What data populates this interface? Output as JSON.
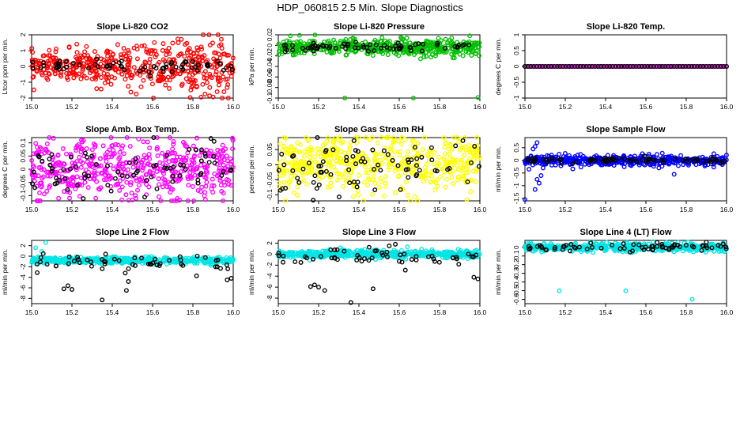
{
  "figure": {
    "title": "HDP_060815 2.5 Min. Slope Diagnostics"
  },
  "chart_data": [
    {
      "type": "scatter",
      "title": "Slope Li-820 CO2",
      "ylabel": "Ltcor ppm per min.",
      "xlim": [
        15.0,
        16.0
      ],
      "ylim": [
        -2,
        2
      ],
      "xticks": [
        "15.0",
        "15.2",
        "15.4",
        "15.6",
        "15.8",
        "16.0"
      ],
      "yticks": [
        -2,
        -1,
        0,
        1,
        2
      ],
      "series": [
        {
          "color": "#ff0000",
          "n": 480,
          "base": 0,
          "spread": 0.42,
          "grow": 1.2,
          "outliers": [
            [
              15.88,
              2.05
            ],
            [
              15.86,
              -1.75
            ],
            [
              15.92,
              -1.6
            ]
          ]
        },
        {
          "color": "#000000",
          "n": 70,
          "base": 0,
          "spread": 0.22
        }
      ]
    },
    {
      "type": "scatter",
      "title": "Slope Li-820 Pressure",
      "ylabel": "kPa per min.",
      "xlim": [
        15.0,
        16.0
      ],
      "ylim": [
        -0.1,
        0.02
      ],
      "xticks": [
        "15.0",
        "15.2",
        "15.4",
        "15.6",
        "15.8",
        "16.0"
      ],
      "yticks": [
        -0.1,
        -0.08,
        -0.06,
        -0.04,
        -0.02,
        0.0,
        0.02
      ],
      "series": [
        {
          "color": "#00c000",
          "n": 480,
          "base": -0.004,
          "spread": 0.0075,
          "outliers": [
            [
              15.33,
              -0.103
            ],
            [
              15.67,
              -0.106
            ],
            [
              15.99,
              -0.099
            ],
            [
              15.06,
              0.018
            ],
            [
              15.95,
              0.018
            ]
          ]
        },
        {
          "color": "#000000",
          "n": 70,
          "base": -0.004,
          "spread": 0.0045
        }
      ]
    },
    {
      "type": "scatter",
      "title": "Slope Li-820 Temp.",
      "ylabel": "degrees C per min.",
      "xlim": [
        15.0,
        16.0
      ],
      "ylim": [
        -1.0,
        1.0
      ],
      "xticks": [
        "15.0",
        "15.2",
        "15.4",
        "15.6",
        "15.8",
        "16.0"
      ],
      "yticks": [
        -1.0,
        -0.5,
        0.0,
        0.5,
        1.0
      ],
      "series": [
        {
          "color": "#ff00ff",
          "n": 90,
          "base": 0,
          "spread": 0,
          "regular": true
        },
        {
          "color": "#000000",
          "n": 70,
          "base": 0,
          "spread": 0,
          "regular": true
        }
      ]
    },
    {
      "type": "scatter",
      "title": "Slope Amb. Box Temp.",
      "ylabel": "degrees C per min.",
      "xlim": [
        15.0,
        16.0
      ],
      "ylim": [
        -0.12,
        0.12
      ],
      "xticks": [
        "15.0",
        "15.2",
        "15.4",
        "15.6",
        "15.8",
        "16.0"
      ],
      "yticks": [
        -0.1,
        -0.05,
        0.0,
        0.05,
        0.1
      ],
      "series": [
        {
          "color": "#ff00ff",
          "n": 520,
          "base": 0,
          "spread": 0.055
        },
        {
          "color": "#000000",
          "n": 80,
          "base": 0,
          "spread": 0.045
        }
      ]
    },
    {
      "type": "scatter",
      "title": "Slope Gas Stream RH",
      "ylabel": "percent per min.",
      "xlim": [
        15.0,
        16.0
      ],
      "ylim": [
        -0.12,
        0.09
      ],
      "xticks": [
        "15.0",
        "15.2",
        "15.4",
        "15.6",
        "15.8",
        "16.0"
      ],
      "yticks": [
        -0.1,
        -0.05,
        0.0,
        0.05
      ],
      "series": [
        {
          "color": "#ffff00",
          "n": 520,
          "base": 0,
          "spread": 0.05
        },
        {
          "color": "#000000",
          "n": 80,
          "base": 0,
          "spread": 0.045
        }
      ]
    },
    {
      "type": "scatter",
      "title": "Slope Sample Flow",
      "ylabel": "ml/min per min.",
      "xlim": [
        15.0,
        16.0
      ],
      "ylim": [
        -1.6,
        0.9
      ],
      "xticks": [
        "15.0",
        "15.2",
        "15.4",
        "15.6",
        "15.8",
        "16.0"
      ],
      "yticks": [
        -1.5,
        -1.0,
        -0.5,
        0.0,
        0.5
      ],
      "series": [
        {
          "color": "#0000ff",
          "n": 480,
          "base": 0,
          "spread": 0.1,
          "outliers": [
            [
              15.0,
              -1.55
            ],
            [
              15.05,
              -1.15
            ],
            [
              15.07,
              -0.9
            ],
            [
              15.08,
              -0.6
            ],
            [
              15.09,
              -0.3
            ],
            [
              15.04,
              0.45
            ],
            [
              15.06,
              0.7
            ],
            [
              15.05,
              0.55
            ],
            [
              15.03,
              0.15
            ],
            [
              15.02,
              -0.35
            ],
            [
              15.06,
              -0.75
            ],
            [
              15.74,
              -0.55
            ]
          ]
        },
        {
          "color": "#000000",
          "n": 80,
          "base": 0,
          "spread": 0.05
        }
      ]
    },
    {
      "type": "scatter",
      "title": "Slope Line 2 Flow",
      "ylabel": "ml/min per min.",
      "xlim": [
        15.0,
        16.0
      ],
      "ylim": [
        -9,
        3
      ],
      "xticks": [
        "15.0",
        "15.2",
        "15.4",
        "15.6",
        "15.8",
        "16.0"
      ],
      "yticks": [
        -8,
        -6,
        -4,
        -2,
        0,
        2
      ],
      "series": [
        {
          "color": "#00e5e5",
          "n": 520,
          "base": -0.8,
          "spread": 0.3,
          "outliers": [
            [
              15.02,
              1.6
            ],
            [
              15.05,
              0.9
            ],
            [
              15.07,
              2.6
            ],
            [
              15.03,
              -0.1
            ]
          ]
        },
        {
          "color": "#000000",
          "n": 55,
          "base": -1.3,
          "spread": 0.8,
          "outliers": [
            [
              15.16,
              -6.2
            ],
            [
              15.18,
              -5.6
            ],
            [
              15.2,
              -6.3
            ],
            [
              15.35,
              -8.3
            ],
            [
              15.47,
              -6.5
            ],
            [
              15.48,
              -4.8
            ],
            [
              15.97,
              -4.5
            ],
            [
              15.99,
              -4.2
            ]
          ]
        }
      ]
    },
    {
      "type": "scatter",
      "title": "Slope Line 3 Flow",
      "ylabel": "ml/min per min.",
      "xlim": [
        15.0,
        16.0
      ],
      "ylim": [
        -9,
        2.5
      ],
      "xticks": [
        "15.0",
        "15.2",
        "15.4",
        "15.6",
        "15.8",
        "16.0"
      ],
      "yticks": [
        -8,
        -6,
        -4,
        -2,
        0,
        2
      ],
      "series": [
        {
          "color": "#00e5e5",
          "n": 520,
          "base": 0,
          "spread": 0.35
        },
        {
          "color": "#000000",
          "n": 55,
          "base": -0.4,
          "spread": 0.9,
          "outliers": [
            [
              15.16,
              -5.9
            ],
            [
              15.18,
              -5.6
            ],
            [
              15.2,
              -6.0
            ],
            [
              15.23,
              -6.6
            ],
            [
              15.36,
              -8.8
            ],
            [
              15.47,
              -6.3
            ],
            [
              15.97,
              -4.2
            ],
            [
              15.99,
              -4.5
            ],
            [
              15.63,
              -2.9
            ],
            [
              15.55,
              1.5
            ]
          ]
        }
      ]
    },
    {
      "type": "scatter",
      "title": "Slope Line 4 (LT) Flow",
      "ylabel": "ml/min per min.",
      "xlim": [
        15.0,
        16.0
      ],
      "ylim": [
        -0.65,
        0.08
      ],
      "xticks": [
        "15.0",
        "15.2",
        "15.4",
        "15.6",
        "15.8",
        "16.0"
      ],
      "yticks": [
        -0.6,
        -0.5,
        -0.4,
        -0.3,
        -0.2,
        -0.1,
        0.0
      ],
      "series": [
        {
          "color": "#00e5e5",
          "n": 520,
          "base": 0,
          "spread": 0.022,
          "outliers": [
            [
              15.17,
              -0.5
            ],
            [
              15.5,
              -0.5
            ],
            [
              15.83,
              -0.6
            ]
          ]
        },
        {
          "color": "#000000",
          "n": 70,
          "base": 0,
          "spread": 0.022
        }
      ]
    }
  ]
}
